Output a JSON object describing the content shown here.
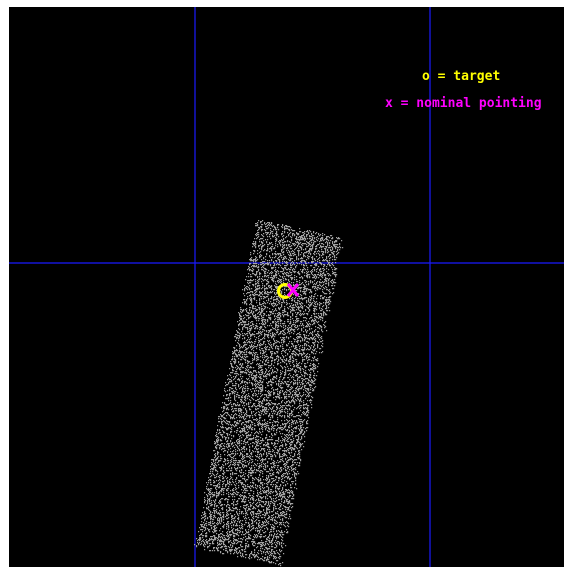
{
  "legend": {
    "target_text": "o = target",
    "pointing_text": "x = nominal pointing"
  },
  "colors": {
    "background": "#000000",
    "grid_lines": "#1a1aff",
    "target": "#ffff00",
    "pointing": "#ff00ff",
    "footprint_pixels": "#bdbdbd",
    "border": "#ffffff"
  },
  "icons": {
    "target_marker": "circle-o",
    "pointing_marker": "cross-x"
  }
}
